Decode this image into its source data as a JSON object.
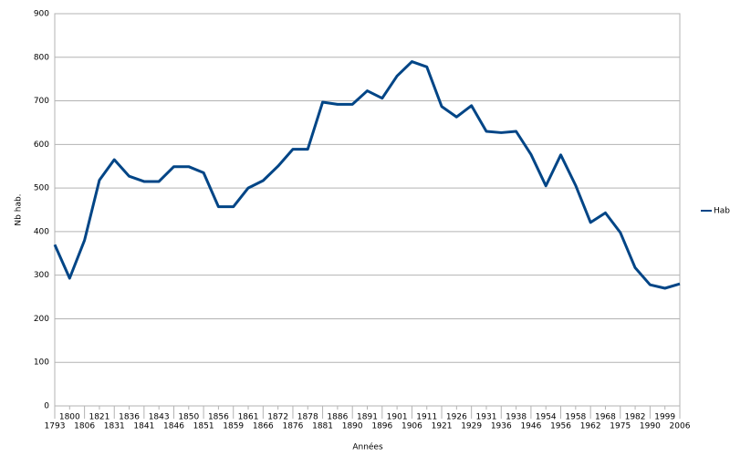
{
  "chart_data": {
    "type": "line",
    "x_label": "Années",
    "y_label": "Nb hab.",
    "categories": [
      "1793",
      "1800",
      "1806",
      "1821",
      "1831",
      "1836",
      "1841",
      "1843",
      "1846",
      "1850",
      "1851",
      "1856",
      "1859",
      "1861",
      "1866",
      "1872",
      "1876",
      "1878",
      "1881",
      "1886",
      "1890",
      "1891",
      "1896",
      "1901",
      "1906",
      "1911",
      "1921",
      "1926",
      "1929",
      "1931",
      "1936",
      "1938",
      "1946",
      "1954",
      "1956",
      "1958",
      "1962",
      "1968",
      "1975",
      "1982",
      "1990",
      "1999",
      "2006"
    ],
    "series": [
      {
        "name": "Hab.",
        "color": "#004586",
        "values": [
          370,
          293,
          380,
          518,
          565,
          527,
          515,
          515,
          549,
          549,
          535,
          457,
          457,
          500,
          517,
          550,
          589,
          589,
          697,
          692,
          692,
          723,
          706,
          757,
          790,
          778,
          687,
          663,
          689,
          630,
          627,
          630,
          577,
          505,
          576,
          506,
          421,
          443,
          398,
          317,
          278,
          270,
          280
        ]
      }
    ],
    "ylim": [
      0,
      900
    ],
    "yticks": [
      0,
      100,
      200,
      300,
      400,
      500,
      600,
      700,
      800,
      900
    ],
    "grid": true,
    "legend": "right"
  }
}
